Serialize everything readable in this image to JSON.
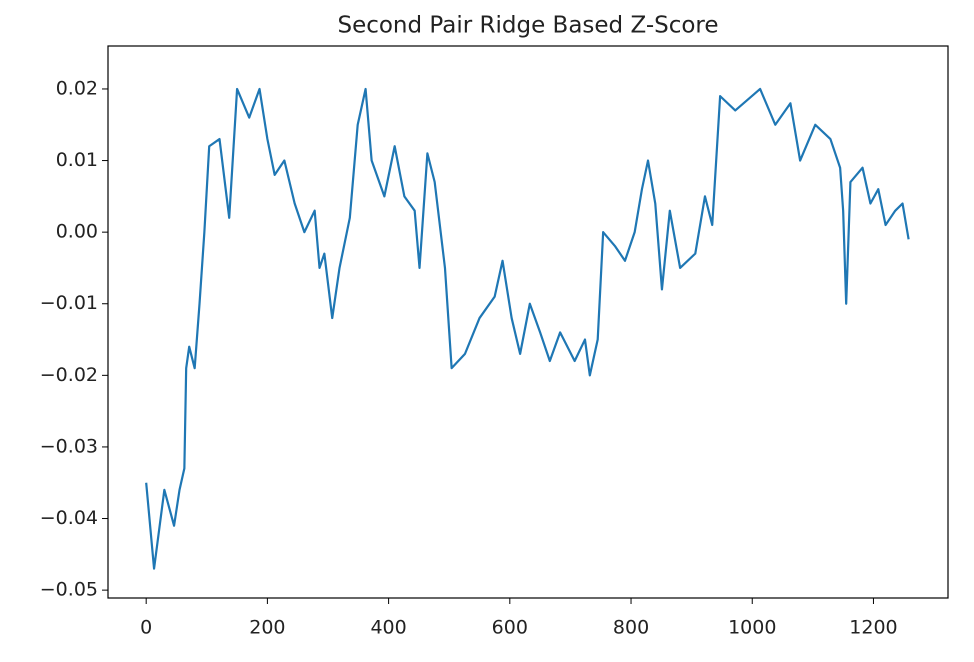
{
  "chart_data": {
    "type": "line",
    "title": "Second Pair Ridge Based Z-Score",
    "series": [
      {
        "color": "#1f77b4",
        "x": [
          0,
          13,
          30,
          46,
          55,
          63,
          66,
          71,
          80,
          88,
          96,
          104,
          121,
          137,
          150,
          170,
          187,
          200,
          212,
          228,
          245,
          261,
          278,
          286,
          294,
          307,
          319,
          336,
          349,
          362,
          372,
          393,
          410,
          426,
          443,
          451,
          464,
          476,
          493,
          504,
          526,
          550,
          575,
          588,
          603,
          617,
          633,
          650,
          666,
          683,
          707,
          724,
          732,
          745,
          754,
          774,
          790,
          806,
          818,
          828,
          840,
          851,
          864,
          881,
          906,
          922,
          934,
          947,
          972,
          1013,
          1038,
          1063,
          1079,
          1104,
          1129,
          1145,
          1150,
          1155,
          1162,
          1182,
          1195,
          1208,
          1220,
          1236,
          1248,
          1258
        ],
        "values": [
          -0.035,
          -0.047,
          -0.036,
          -0.041,
          -0.036,
          -0.033,
          -0.019,
          -0.016,
          -0.019,
          -0.01,
          0.0,
          0.012,
          0.013,
          0.002,
          0.02,
          0.016,
          0.02,
          0.013,
          0.008,
          0.01,
          0.004,
          0.0,
          0.003,
          -0.005,
          -0.003,
          -0.012,
          -0.005,
          0.002,
          0.015,
          0.02,
          0.01,
          0.005,
          0.012,
          0.005,
          0.003,
          -0.005,
          0.011,
          0.007,
          -0.005,
          -0.019,
          -0.017,
          -0.012,
          -0.009,
          -0.004,
          -0.012,
          -0.017,
          -0.01,
          -0.014,
          -0.018,
          -0.014,
          -0.018,
          -0.015,
          -0.02,
          -0.015,
          0.0,
          -0.002,
          -0.004,
          0.0,
          0.006,
          0.01,
          0.004,
          -0.008,
          0.003,
          -0.005,
          -0.003,
          0.005,
          0.001,
          0.019,
          0.017,
          0.02,
          0.015,
          0.018,
          0.01,
          0.015,
          0.013,
          0.009,
          0.003,
          -0.01,
          0.007,
          0.009,
          0.004,
          0.006,
          0.001,
          0.003,
          0.004,
          -0.001
        ]
      }
    ],
    "xlim": [
      -63,
      1323
    ],
    "ylim": [
      -0.0511,
      0.026
    ],
    "xticks": [
      0,
      200,
      400,
      600,
      800,
      1000,
      1200
    ],
    "yticks": [
      {
        "value": -0.05,
        "label": "−0.05"
      },
      {
        "value": -0.04,
        "label": "−0.04"
      },
      {
        "value": -0.03,
        "label": "−0.03"
      },
      {
        "value": -0.02,
        "label": "−0.02"
      },
      {
        "value": -0.01,
        "label": "−0.01"
      },
      {
        "value": 0,
        "label": "0.00"
      },
      {
        "value": 0.01,
        "label": "0.01"
      },
      {
        "value": 0.02,
        "label": "0.02"
      }
    ]
  }
}
